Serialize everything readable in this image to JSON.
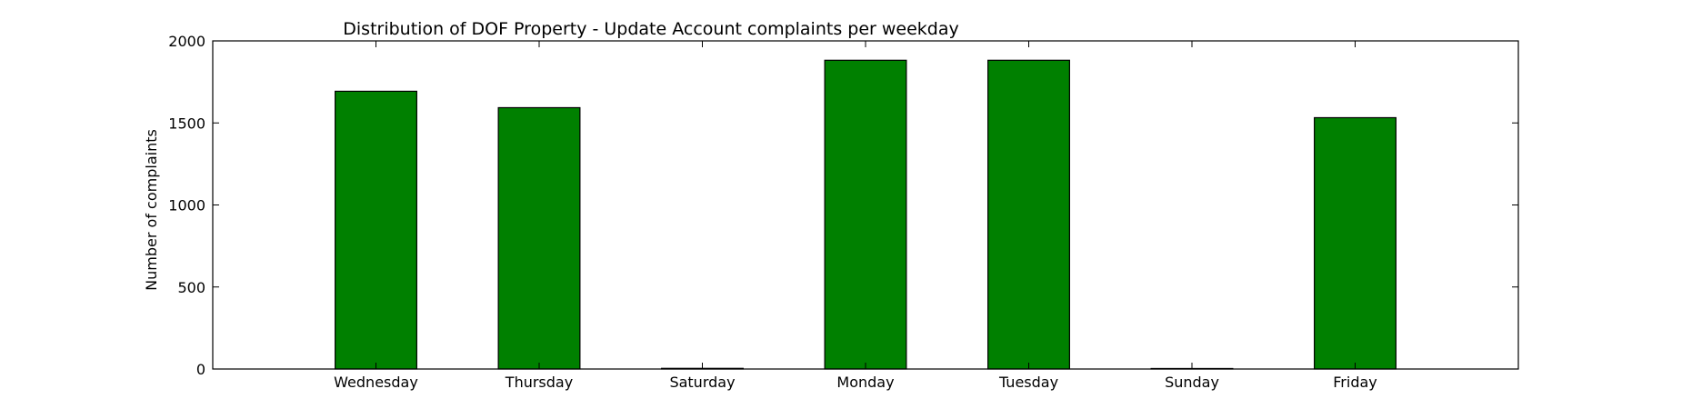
{
  "chart_data": {
    "type": "bar",
    "title": "Distribution of  DOF Property - Update Account complaints per weekday",
    "xlabel": "",
    "ylabel": "Number of complaints",
    "categories": [
      "Wednesday",
      "Thursday",
      "Saturday",
      "Monday",
      "Tuesday",
      "Sunday",
      "Friday"
    ],
    "values": [
      1693,
      1593,
      4,
      1882,
      1882,
      3,
      1532
    ],
    "ylim": [
      0,
      2000
    ],
    "yticks": [
      0,
      500,
      1000,
      1500,
      2000
    ],
    "xlim": [
      -1,
      7
    ],
    "bar_color": "#008000",
    "edge_color": "#000000",
    "grid": false,
    "legend": "none"
  }
}
